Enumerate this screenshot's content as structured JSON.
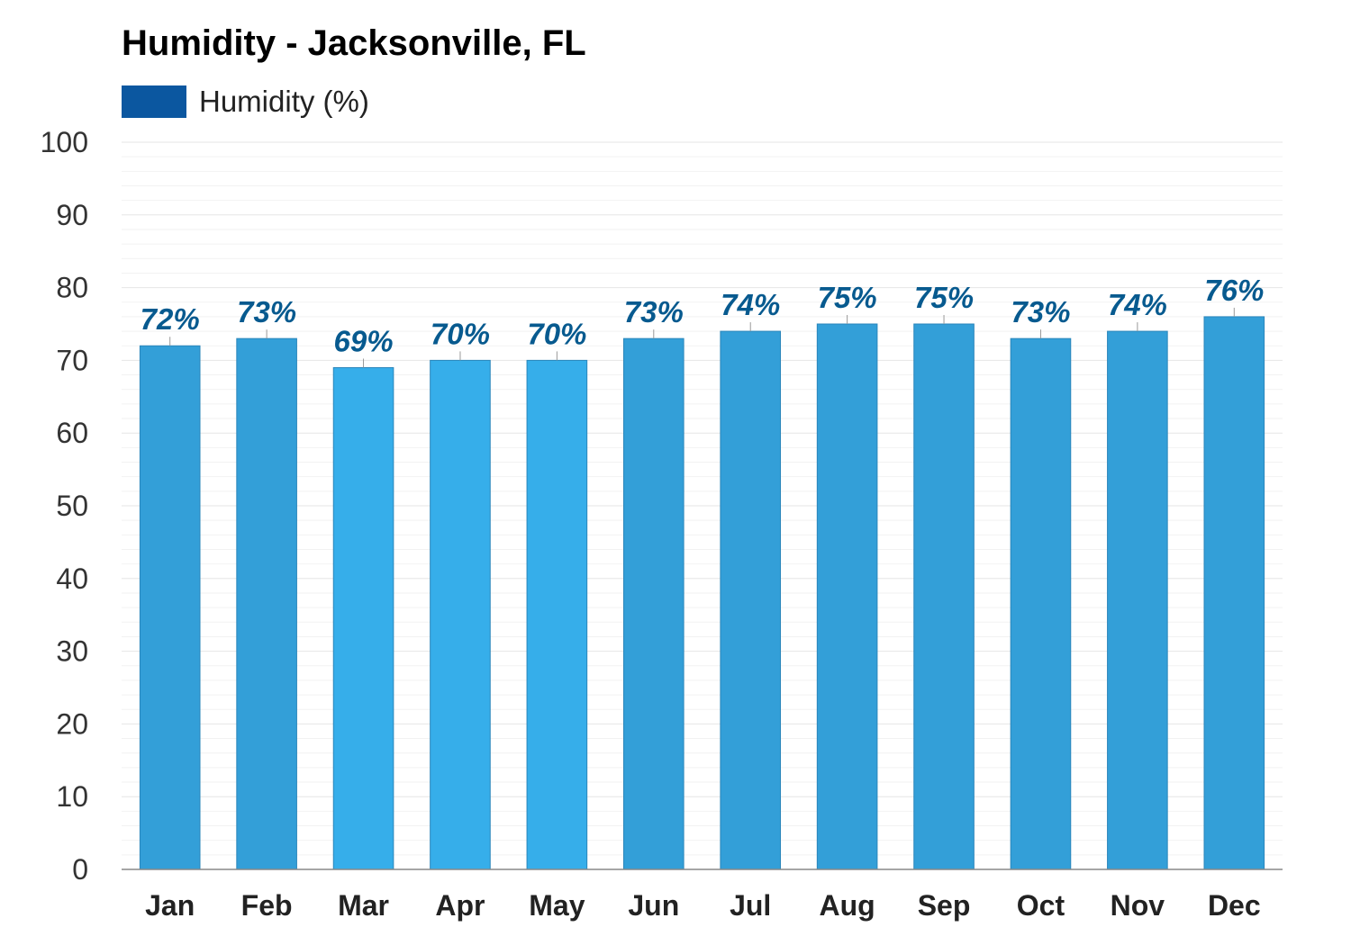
{
  "chart_data": {
    "type": "bar",
    "title": "Humidity - Jacksonville, FL",
    "categories": [
      "Jan",
      "Feb",
      "Mar",
      "Apr",
      "May",
      "Jun",
      "Jul",
      "Aug",
      "Sep",
      "Oct",
      "Nov",
      "Dec"
    ],
    "series": [
      {
        "name": "Humidity (%)",
        "values": [
          72,
          73,
          69,
          70,
          70,
          73,
          74,
          75,
          75,
          73,
          74,
          76
        ],
        "data_labels": [
          "72%",
          "73%",
          "69%",
          "70%",
          "70%",
          "73%",
          "74%",
          "75%",
          "75%",
          "73%",
          "74%",
          "76%"
        ],
        "bar_colors": [
          "#339fd8",
          "#339fd8",
          "#36aeea",
          "#36aeea",
          "#36aeea",
          "#339fd8",
          "#339fd8",
          "#339fd8",
          "#339fd8",
          "#339fd8",
          "#339fd8",
          "#339fd8"
        ]
      }
    ],
    "xlabel": "",
    "ylabel": "",
    "ylim": [
      0,
      100
    ],
    "yticks": [
      0,
      10,
      20,
      30,
      40,
      50,
      60,
      70,
      80,
      90,
      100
    ],
    "grid": true,
    "legend_position": "top-left"
  },
  "colors": {
    "legend_swatch": "#0b57a0",
    "data_label": "#075a8f",
    "bar_stroke": "#2a86bb",
    "grid": "#e6e6e6",
    "minor_grid": "#f2f2f2",
    "axis": "#888888"
  }
}
